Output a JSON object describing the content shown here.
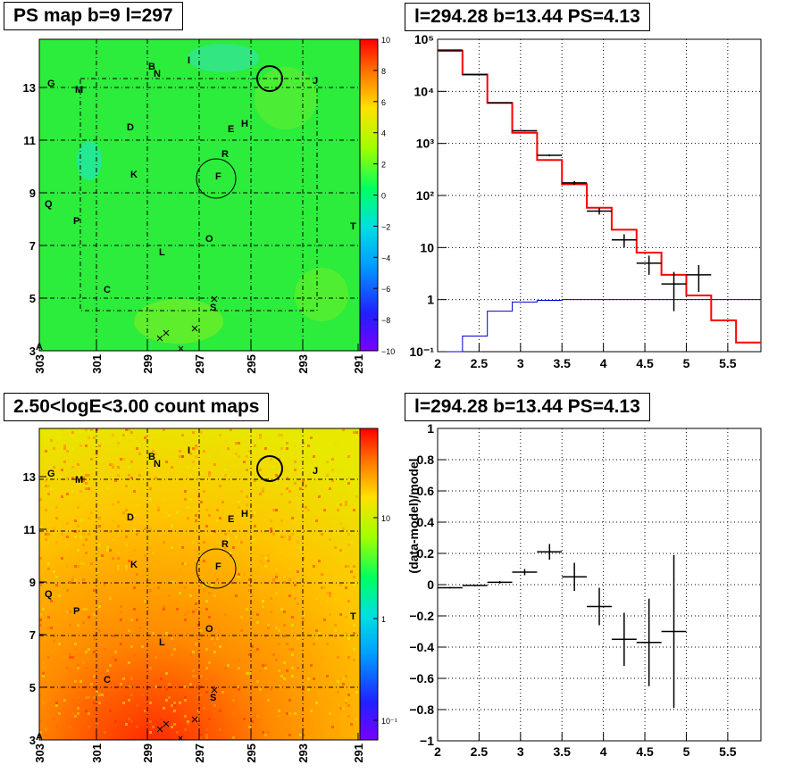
{
  "panels": {
    "ps_map_title": "PS map b=9 l=297",
    "spectrum_title": "l=294.28 b=13.44 PS=4.13",
    "count_map_title": "2.50<logE<3.00 count maps",
    "residual_title": "l=294.28 b=13.44 PS=4.13"
  },
  "colors": {
    "data": "#000000",
    "model": "#ff0000",
    "background_model": "#0000cc"
  },
  "chart_data": [
    {
      "type": "heatmap",
      "title": "PS map b=9 l=297",
      "x_ticks": [
        "303",
        "301",
        "299",
        "297",
        "295",
        "293",
        "291"
      ],
      "y_ticks": [
        "3",
        "5",
        "7",
        "9",
        "11",
        "13"
      ],
      "colorbar_ticks": [
        "10",
        "8",
        "6",
        "4",
        "2",
        "0",
        "−2",
        "−4",
        "−6",
        "−8",
        "−10"
      ],
      "zlim": [
        -10,
        10
      ],
      "source_labels": [
        "A",
        "B",
        "C",
        "D",
        "E",
        "F",
        "G",
        "H",
        "I",
        "J",
        "K",
        "L",
        "M",
        "N",
        "O",
        "P",
        "Q",
        "R",
        "S",
        "T"
      ],
      "grid": true
    },
    {
      "type": "line",
      "title": "l=294.28 b=13.44 PS=4.13",
      "log_y": true,
      "xlim": [
        2,
        5.9
      ],
      "ylim": [
        0.1,
        100000
      ],
      "x_ticks": [
        "2",
        "2.5",
        "3",
        "3.5",
        "4",
        "4.5",
        "5",
        "5.5"
      ],
      "y_ticks": [
        "10⁻¹",
        "1",
        "10",
        "10²",
        "10³",
        "10⁴",
        "10⁵"
      ],
      "grid": true,
      "series": [
        {
          "role": "model",
          "style": "step",
          "bins": [
            2.0,
            2.3,
            2.6,
            2.9,
            3.2,
            3.5,
            3.8,
            4.1,
            4.4,
            4.7,
            5.0,
            5.3,
            5.6,
            5.9
          ],
          "values": [
            60000,
            21000,
            6000,
            1600,
            480,
            165,
            58,
            22,
            8,
            3,
            1.2,
            0.4,
            0.15
          ]
        },
        {
          "role": "background",
          "style": "step",
          "bins": [
            2.0,
            2.3,
            2.6,
            2.9,
            3.2,
            3.5,
            3.8,
            4.1,
            4.4,
            4.7,
            5.0,
            5.3,
            5.6,
            5.9
          ],
          "values": [
            0.1,
            0.2,
            0.6,
            0.9,
            0.97,
            1.0,
            1.0,
            1.0,
            1.0,
            1.0,
            1.0,
            1.0,
            1.0
          ]
        },
        {
          "role": "data",
          "style": "errorbars",
          "points": [
            {
              "x": 2.15,
              "xerr": 0.15,
              "y": 62000,
              "ylo": 61000,
              "yhi": 63000
            },
            {
              "x": 2.45,
              "xerr": 0.15,
              "y": 21000,
              "ylo": 20500,
              "yhi": 21500
            },
            {
              "x": 2.75,
              "xerr": 0.15,
              "y": 6000,
              "ylo": 5900,
              "yhi": 6100
            },
            {
              "x": 3.05,
              "xerr": 0.15,
              "y": 1750,
              "ylo": 1700,
              "yhi": 1800
            },
            {
              "x": 3.35,
              "xerr": 0.15,
              "y": 590,
              "ylo": 565,
              "yhi": 615
            },
            {
              "x": 3.65,
              "xerr": 0.15,
              "y": 175,
              "ylo": 160,
              "yhi": 190
            },
            {
              "x": 3.95,
              "xerr": 0.15,
              "y": 50,
              "ylo": 43,
              "yhi": 57
            },
            {
              "x": 4.25,
              "xerr": 0.15,
              "y": 14,
              "ylo": 10,
              "yhi": 18
            },
            {
              "x": 4.55,
              "xerr": 0.15,
              "y": 5,
              "ylo": 3,
              "yhi": 7
            },
            {
              "x": 4.85,
              "xerr": 0.15,
              "y": 2,
              "ylo": 0.6,
              "yhi": 3.4
            },
            {
              "x": 5.15,
              "xerr": 0.15,
              "y": 3,
              "ylo": 1.4,
              "yhi": 4.6
            }
          ]
        }
      ]
    },
    {
      "type": "heatmap",
      "title": "2.50<logE<3.00 count maps",
      "x_ticks": [
        "303",
        "301",
        "299",
        "297",
        "295",
        "293",
        "291"
      ],
      "y_ticks": [
        "3",
        "5",
        "7",
        "9",
        "11",
        "13"
      ],
      "colorbar_ticks": [
        "10",
        "1",
        "10⁻¹"
      ],
      "log_z": true,
      "source_labels": [
        "A",
        "B",
        "C",
        "D",
        "E",
        "F",
        "G",
        "H",
        "I",
        "J",
        "K",
        "L",
        "M",
        "N",
        "O",
        "P",
        "Q",
        "R",
        "S",
        "T"
      ],
      "grid": true
    },
    {
      "type": "scatter",
      "title": "l=294.28 b=13.44 PS=4.13",
      "ylabel": "(data-model)/model",
      "xlim": [
        2,
        5.9
      ],
      "ylim": [
        -1,
        1
      ],
      "x_ticks": [
        "2",
        "2.5",
        "3",
        "3.5",
        "4",
        "4.5",
        "5",
        "5.5"
      ],
      "y_ticks": [
        "−1",
        "−0.8",
        "−0.6",
        "−0.4",
        "−0.2",
        "0",
        "0.2",
        "0.4",
        "0.6",
        "0.8",
        "1"
      ],
      "grid": true,
      "points": [
        {
          "x": 2.15,
          "xerr": 0.15,
          "y": -0.02,
          "yerr": 0.005
        },
        {
          "x": 2.45,
          "xerr": 0.15,
          "y": -0.005,
          "yerr": 0.005
        },
        {
          "x": 2.75,
          "xerr": 0.15,
          "y": 0.015,
          "yerr": 0.008
        },
        {
          "x": 3.05,
          "xerr": 0.15,
          "y": 0.08,
          "yerr": 0.02
        },
        {
          "x": 3.35,
          "xerr": 0.15,
          "y": 0.21,
          "yerr": 0.05
        },
        {
          "x": 3.65,
          "xerr": 0.15,
          "y": 0.05,
          "yerr": 0.09
        },
        {
          "x": 3.95,
          "xerr": 0.15,
          "y": -0.14,
          "yerr": 0.12
        },
        {
          "x": 4.25,
          "xerr": 0.15,
          "y": -0.35,
          "yerr": 0.17
        },
        {
          "x": 4.55,
          "xerr": 0.15,
          "y": -0.37,
          "yerr": 0.28
        },
        {
          "x": 4.85,
          "xerr": 0.15,
          "y": -0.3,
          "yerr": 0.49
        }
      ]
    }
  ]
}
